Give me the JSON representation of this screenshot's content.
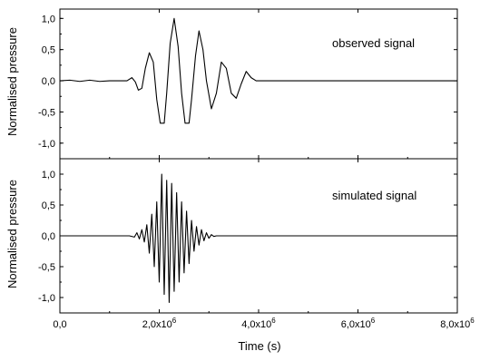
{
  "colors": {
    "line": "#000000",
    "axis": "#000000",
    "background": "#ffffff"
  },
  "chart_data": [
    {
      "type": "line",
      "panel": "top",
      "annotation": "observed signal",
      "ylabel": "Normalised pressure",
      "xlabel": "",
      "xlim": [
        0,
        8000000
      ],
      "ylim": [
        -1.25,
        1.15
      ],
      "yticks": [
        -1.0,
        -0.5,
        0.0,
        0.5,
        1.0
      ],
      "ytick_labels": [
        "-1,0",
        "-0,5",
        "0,0",
        "0,5",
        "1,0"
      ],
      "grid": false,
      "series": [
        {
          "x": [
            0,
            200000,
            400000,
            600000,
            800000,
            1000000,
            1200000,
            1350000,
            1450000,
            1520000,
            1580000,
            1650000,
            1720000,
            1800000,
            1880000,
            1950000,
            2020000,
            2100000,
            2150000,
            2220000,
            2300000,
            2380000,
            2450000,
            2520000,
            2600000,
            2650000,
            2730000,
            2800000,
            2880000,
            2950000,
            3050000,
            3150000,
            3250000,
            3350000,
            3450000,
            3550000,
            3650000,
            3750000,
            3850000,
            3950000,
            4200000,
            5000000,
            6000000,
            7000000,
            8000000
          ],
          "y": [
            0.0,
            0.01,
            -0.01,
            0.01,
            -0.01,
            0.0,
            0.0,
            0.0,
            0.05,
            -0.02,
            -0.15,
            -0.12,
            0.2,
            0.45,
            0.3,
            -0.3,
            -0.68,
            -0.68,
            -0.2,
            0.6,
            1.0,
            0.55,
            -0.2,
            -0.68,
            -0.68,
            -0.3,
            0.4,
            0.8,
            0.5,
            0.0,
            -0.45,
            -0.2,
            0.3,
            0.2,
            -0.2,
            -0.28,
            -0.05,
            0.15,
            0.05,
            0.0,
            0.0,
            0.0,
            0.0,
            0.0,
            0.0
          ]
        }
      ]
    },
    {
      "type": "line",
      "panel": "bottom",
      "annotation": "simulated signal",
      "ylabel": "Normalised pressure",
      "xlabel": "Time (s)",
      "xlim": [
        0,
        8000000
      ],
      "ylim": [
        -1.25,
        1.25
      ],
      "yticks": [
        -1.0,
        -0.5,
        0.0,
        0.5,
        1.0
      ],
      "ytick_labels": [
        "-1,0",
        "-0,5",
        "0,0",
        "0,5",
        "1,0"
      ],
      "xticks": [
        0,
        2000000,
        4000000,
        6000000,
        8000000
      ],
      "xtick_labels": [
        {
          "base": "0,0",
          "exp": ""
        },
        {
          "base": "2,0x10",
          "exp": "6"
        },
        {
          "base": "4,0x10",
          "exp": "6"
        },
        {
          "base": "6,0x10",
          "exp": "6"
        },
        {
          "base": "8,0x10",
          "exp": "6"
        }
      ],
      "grid": false,
      "series": [
        {
          "x": [
            0,
            1400000,
            1500000,
            1550000,
            1600000,
            1650000,
            1700000,
            1750000,
            1800000,
            1850000,
            1900000,
            1950000,
            2000000,
            2050000,
            2100000,
            2150000,
            2200000,
            2250000,
            2300000,
            2350000,
            2400000,
            2450000,
            2500000,
            2550000,
            2600000,
            2650000,
            2700000,
            2750000,
            2800000,
            2850000,
            2900000,
            2950000,
            3000000,
            3050000,
            3100000,
            3150000,
            3200000,
            3250000,
            3300000,
            3350000,
            3500000,
            8000000
          ],
          "y": [
            0.0,
            0.0,
            -0.02,
            0.05,
            -0.05,
            0.1,
            -0.1,
            0.18,
            -0.28,
            0.35,
            -0.5,
            0.55,
            -0.75,
            1.0,
            -0.95,
            0.9,
            -1.08,
            0.85,
            -0.9,
            0.7,
            -0.75,
            0.55,
            -0.6,
            0.4,
            -0.45,
            0.25,
            -0.25,
            0.15,
            -0.15,
            0.1,
            -0.08,
            0.05,
            -0.04,
            0.02,
            -0.01,
            0.0,
            0.0,
            0.0,
            0.0,
            0.0,
            0.0,
            0.0
          ]
        }
      ]
    }
  ]
}
